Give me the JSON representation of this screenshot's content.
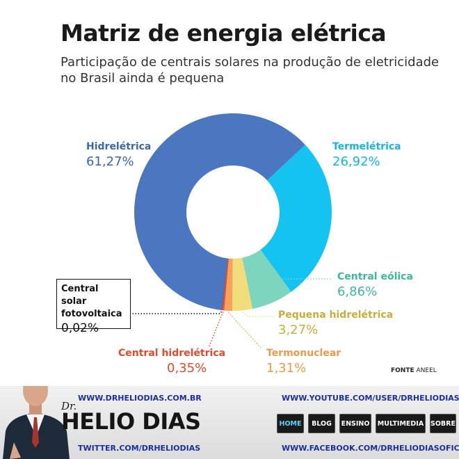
{
  "title": "Matriz de energia elétrica",
  "subtitle": "Participação de centrais solares na produção de eletricidade no Brasil ainda é pequena",
  "source": {
    "prefix": "FONTE",
    "name": "ANEEL"
  },
  "chart_data": {
    "type": "pie",
    "donut": true,
    "title": "Matriz de energia elétrica",
    "subtitle": "Participação de centrais solares na produção de eletricidade no Brasil ainda é pequena",
    "slices": [
      {
        "name": "Termelétrica",
        "value": 26.92,
        "label": "26,92%",
        "color": "#14c3ef"
      },
      {
        "name": "Central eólica",
        "value": 6.86,
        "label": "6,86%",
        "color": "#7dd5be"
      },
      {
        "name": "Pequena hidrelétrica",
        "value": 3.27,
        "label": "3,27%",
        "color": "#f1dc7c"
      },
      {
        "name": "Termonuclear",
        "value": 1.31,
        "label": "1,31%",
        "color": "#f3a35b"
      },
      {
        "name": "Central hidrelétrica",
        "value": 0.35,
        "label": "0,35%",
        "color": "#e8512f"
      },
      {
        "name": "Central solar fotovoltaica",
        "value": 0.02,
        "label": "0,02%",
        "color": "#111111"
      },
      {
        "name": "Hidrelétrica",
        "value": 61.27,
        "label": "61,27%",
        "color": "#4a77c0"
      }
    ]
  },
  "labels": {
    "hidreletrica": {
      "name": "Hidrelétrica",
      "value": "61,27%",
      "color": "#3a66b2"
    },
    "termeletrica": {
      "name": "Termelétrica",
      "value": "26,92%",
      "color": "#14b5e6"
    },
    "eolica": {
      "name": "Central eólica",
      "value": "6,86%",
      "color": "#3fb6a0"
    },
    "pequena": {
      "name": "Pequena hidrelétrica",
      "value": "3,27%",
      "color": "#c9ad38"
    },
    "termonuclear": {
      "name": "Termonuclear",
      "value": "1,31%",
      "color": "#ee9a4c"
    },
    "central_hidro": {
      "name": "Central hidrelétrica",
      "value": "0,35%",
      "color": "#e64a2c"
    },
    "solar": {
      "name": "Central solar fotovoltaica",
      "value": "0,02%"
    }
  },
  "banner": {
    "site": "WWW.DRHELIODIAS.COM.BR",
    "dr": "Dr.",
    "name": "HELIO DIAS",
    "twitter": "TWITTER.COM/DRHELIODIAS",
    "youtube": "WWW.YOUTUBE.COM/USER/DRHELIODIAS",
    "facebook": "WWW.FACEBOOK.COM/DRHELIODIASOFICIAL",
    "nav": [
      "HOME",
      "BLOG",
      "ENSINO",
      "MULTIMEDIA",
      "SOBRE"
    ],
    "link_color": "#1c2fa0",
    "active_nav_color": "#5ad1ff"
  }
}
